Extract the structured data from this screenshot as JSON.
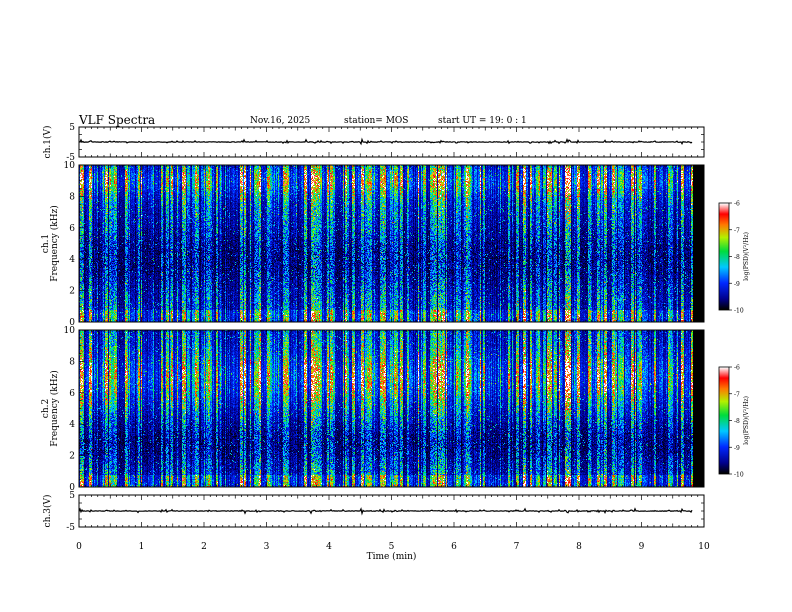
{
  "header": {
    "title": "VLF Spectra",
    "date": "Nov.16, 2025",
    "station": "station= MOS",
    "start": "start  UT =   19: 0  : 1"
  },
  "chart_data": [
    {
      "type": "line",
      "panel": "ch1-waveform",
      "ylabel": "ch.1(V)",
      "ylim": [
        -5,
        5
      ],
      "yticks": [
        5,
        -5
      ],
      "xlim": [
        0,
        10
      ],
      "baseline": 0
    },
    {
      "type": "heatmap",
      "panel": "ch1-spectrogram",
      "ylabel": "ch.1\nFrequency (kHz)",
      "ylabel_lines": [
        "ch.1",
        "Frequency (kHz)"
      ],
      "ylim": [
        0,
        10
      ],
      "yticks": [
        0,
        2,
        4,
        6,
        8,
        10
      ],
      "xlim": [
        0,
        10
      ],
      "data_end_min": 9.82,
      "colorbar": {
        "label": "log(PSD)(V²/Hz)",
        "range": [
          -10,
          -6
        ],
        "ticks": [
          -6,
          -7,
          -8,
          -9,
          -10
        ]
      }
    },
    {
      "type": "heatmap",
      "panel": "ch2-spectrogram",
      "ylabel": "ch.2\nFrequency (kHz)",
      "ylabel_lines": [
        "ch.2",
        "Frequency (kHz)"
      ],
      "ylim": [
        0,
        10
      ],
      "yticks": [
        0,
        2,
        4,
        6,
        8,
        10
      ],
      "xlim": [
        0,
        10
      ],
      "data_end_min": 9.82,
      "colorbar": {
        "label": "log(PSD)(V²/Hz)",
        "range": [
          -10,
          -6
        ],
        "ticks": [
          -6,
          -7,
          -8,
          -9,
          -10
        ]
      }
    },
    {
      "type": "line",
      "panel": "ch3-waveform",
      "ylabel": "ch.3(V)",
      "ylim": [
        -5,
        5
      ],
      "yticks": [
        5,
        -5
      ],
      "xlim": [
        0,
        10
      ],
      "xlabel": "Time  (min)",
      "xticks": [
        0,
        1,
        2,
        3,
        4,
        5,
        6,
        7,
        8,
        9,
        10
      ],
      "baseline": 0
    }
  ]
}
